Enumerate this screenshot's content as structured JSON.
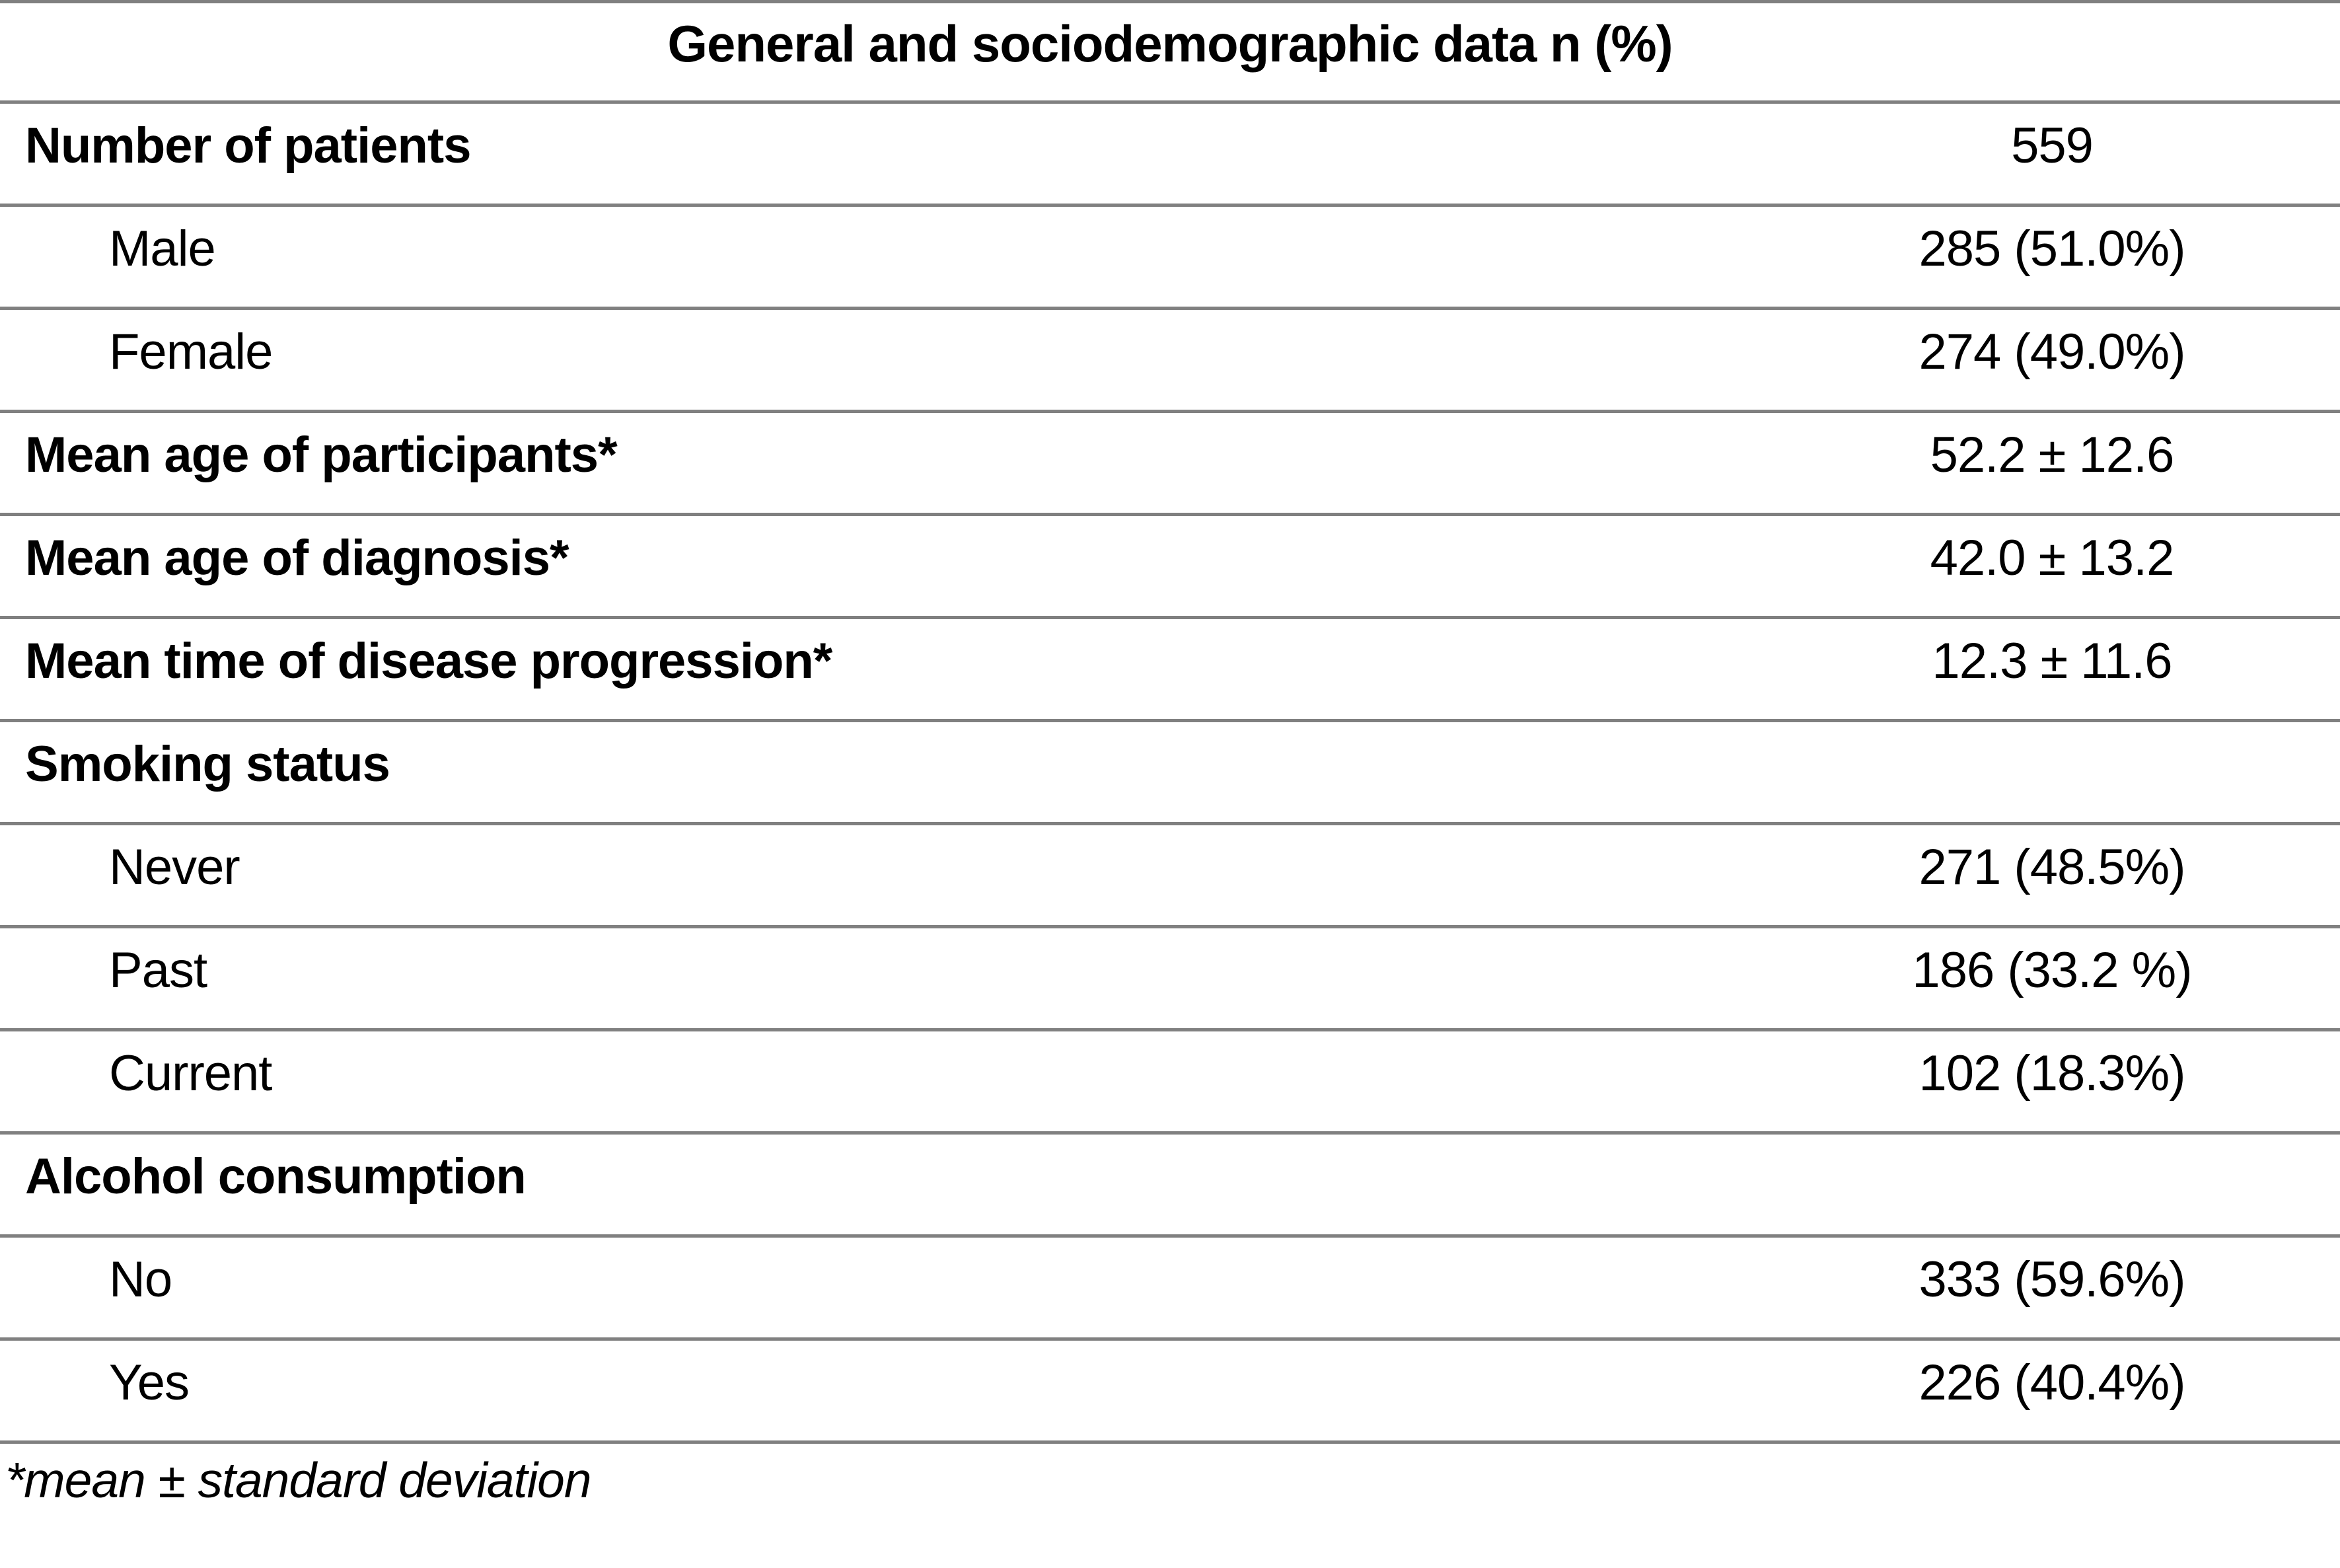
{
  "title": "General and sociodemographic data n (%)",
  "table": {
    "rows": [
      {
        "label": "Number of patients",
        "value": "559",
        "style": "header"
      },
      {
        "label": "Male",
        "value": "285 (51.0%)",
        "style": "sub"
      },
      {
        "label": "Female",
        "value": "274 (49.0%)",
        "style": "sub"
      },
      {
        "label": "Mean age of participants*",
        "value": "52.2 ± 12.6",
        "style": "header"
      },
      {
        "label": "Mean age of diagnosis*",
        "value": "42.0 ± 13.2",
        "style": "header"
      },
      {
        "label": "Mean time of disease progression*",
        "value": "12.3 ± 11.6",
        "style": "header"
      },
      {
        "label": "Smoking status",
        "value": "",
        "style": "header"
      },
      {
        "label": "Never",
        "value": "271 (48.5%)",
        "style": "sub"
      },
      {
        "label": "Past",
        "value": "186 (33.2 %)",
        "style": "sub"
      },
      {
        "label": "Current",
        "value": "102 (18.3%)",
        "style": "sub"
      },
      {
        "label": "Alcohol consumption",
        "value": "",
        "style": "header"
      },
      {
        "label": "No",
        "value": "333 (59.6%)",
        "style": "sub"
      },
      {
        "label": "Yes",
        "value": "226 (40.4%)",
        "style": "sub"
      }
    ]
  },
  "footnote": "*mean ± standard deviation",
  "colors": {
    "line": "#808080",
    "text": "#000000",
    "background": "#ffffff"
  }
}
